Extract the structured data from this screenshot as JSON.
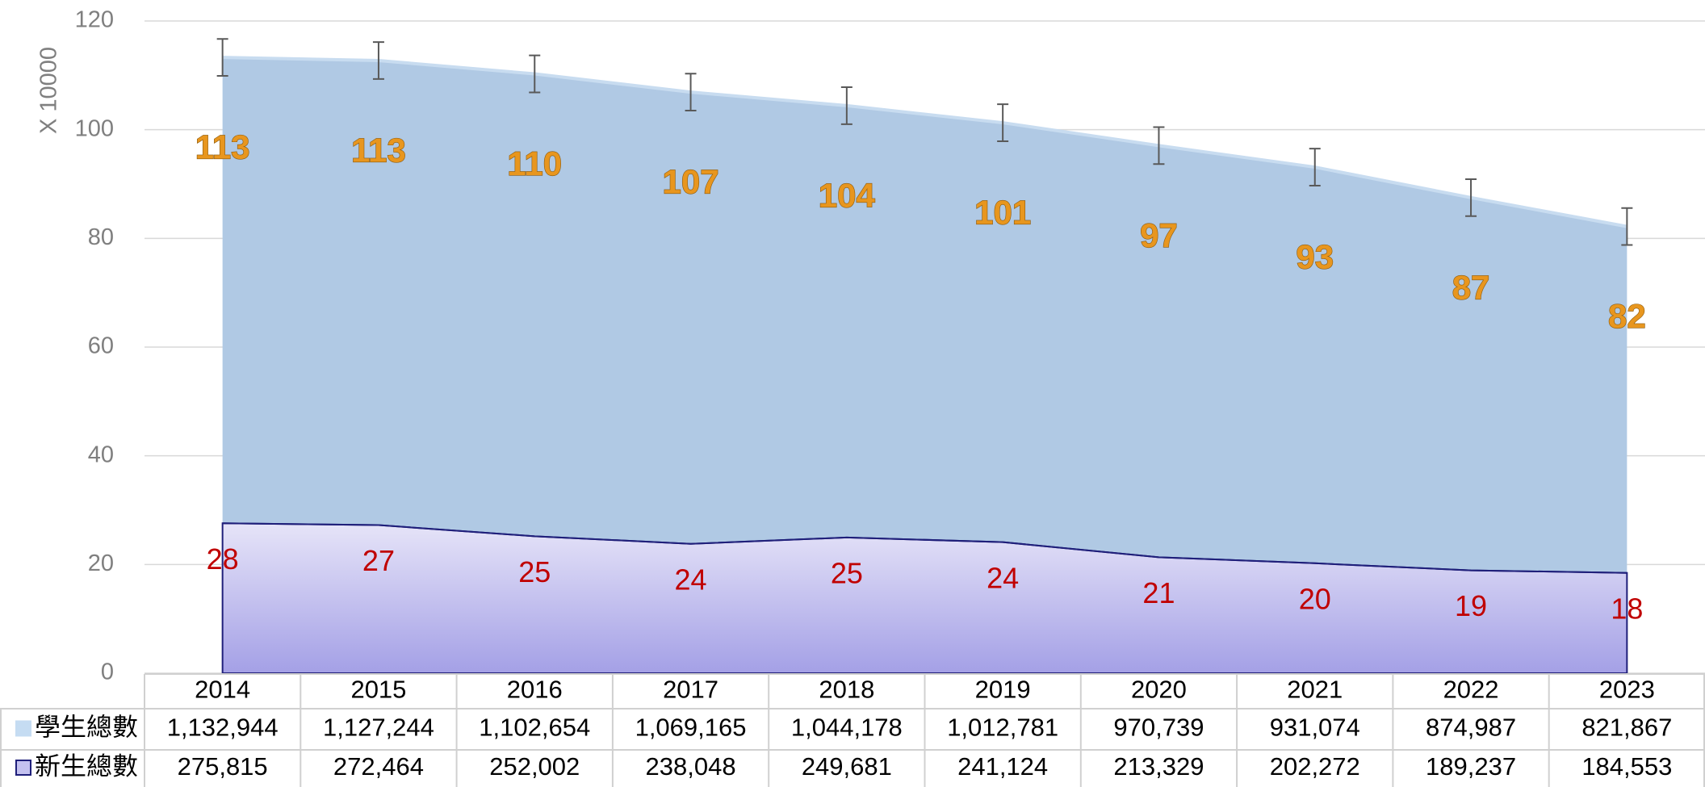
{
  "chart_data": {
    "type": "area",
    "y_axis_label": "X 10000",
    "categories": [
      "2014",
      "2015",
      "2016",
      "2017",
      "2018",
      "2019",
      "2020",
      "2021",
      "2022",
      "2023"
    ],
    "ylim": [
      0,
      120
    ],
    "yticks": [
      0,
      20,
      40,
      60,
      80,
      100,
      120
    ],
    "grid": true,
    "series": [
      {
        "name": "學生總數",
        "color": "#b0c9e4",
        "line_color": "#c8dcf0",
        "label_color": "#e8961e",
        "values": [
          113.2944,
          112.7244,
          110.2654,
          106.9165,
          104.4178,
          101.2781,
          97.0739,
          93.1074,
          87.4987,
          82.1867
        ],
        "value_labels": [
          "113",
          "113",
          "110",
          "107",
          "104",
          "101",
          "97",
          "93",
          "87",
          "82"
        ],
        "errors": [
          3.4,
          3.4,
          3.4,
          3.4,
          3.4,
          3.4,
          3.4,
          3.4,
          3.4,
          3.4
        ],
        "table_labels": [
          "1,132,944",
          "1,127,244",
          "1,102,654",
          "1,069,165",
          "1,044,178",
          "1,012,781",
          "970,739",
          "931,074",
          "874,987",
          "821,867"
        ]
      },
      {
        "name": "新生總數",
        "color": "#c4c1f0",
        "line_color": "#1f1f7a",
        "label_color": "#c00000",
        "values": [
          27.5815,
          27.2464,
          25.2002,
          23.8048,
          24.9681,
          24.1124,
          21.3329,
          20.2272,
          18.9237,
          18.4553
        ],
        "value_labels": [
          "28",
          "27",
          "25",
          "24",
          "25",
          "24",
          "21",
          "20",
          "19",
          "18"
        ],
        "table_labels": [
          "275,815",
          "272,464",
          "252,002",
          "238,048",
          "249,681",
          "241,124",
          "213,329",
          "202,272",
          "189,237",
          "184,553"
        ]
      }
    ]
  }
}
